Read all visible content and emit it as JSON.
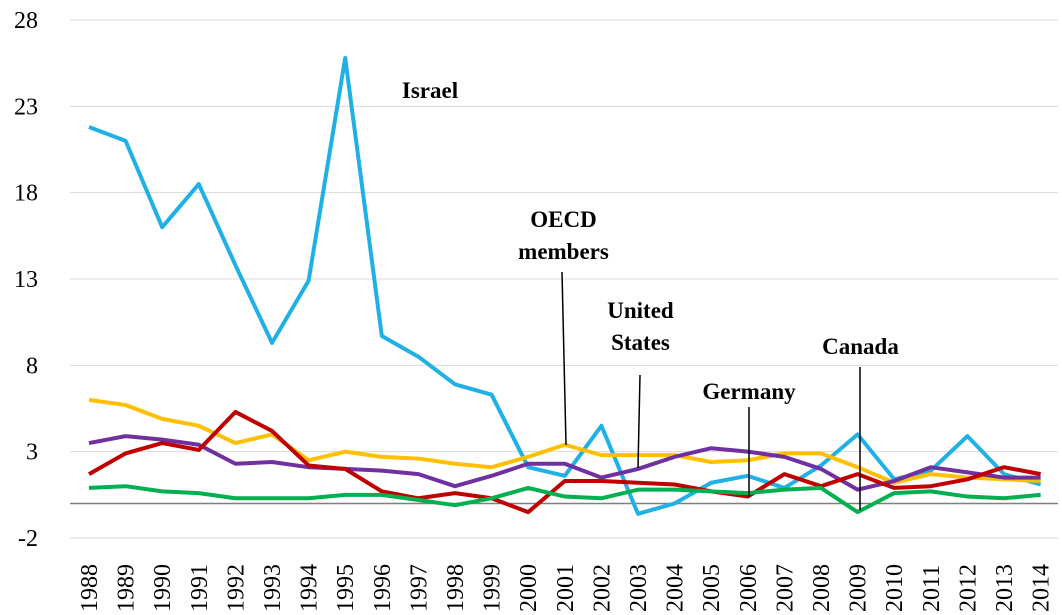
{
  "chart_data": {
    "type": "line",
    "categories": [
      "1988",
      "1989",
      "1990",
      "1991",
      "1992",
      "1993",
      "1994",
      "1995",
      "1996",
      "1997",
      "1998",
      "1999",
      "2000",
      "2001",
      "2002",
      "2003",
      "2004",
      "2005",
      "2006",
      "2007",
      "2008",
      "2009",
      "2010",
      "2011",
      "2012",
      "2013",
      "2014"
    ],
    "series": [
      {
        "name": "Israel",
        "color": "#1fb1e6",
        "values": [
          21.8,
          21.0,
          16.0,
          18.5,
          13.8,
          9.3,
          12.9,
          25.8,
          9.7,
          8.5,
          6.9,
          6.3,
          2.1,
          1.6,
          4.5,
          -0.6,
          0,
          1.2,
          1.6,
          0.9,
          2.2,
          4.0,
          1.4,
          1.9,
          3.9,
          1.7,
          1.1
        ]
      },
      {
        "name": "OECD members",
        "color": "#ffc000",
        "values": [
          6.0,
          5.7,
          4.9,
          4.5,
          3.5,
          4.0,
          2.5,
          3.0,
          2.7,
          2.6,
          2.3,
          2.1,
          2.7,
          3.4,
          2.8,
          2.8,
          2.8,
          2.4,
          2.5,
          2.9,
          2.9,
          2.1,
          1.2,
          1.7,
          1.5,
          1.4,
          1.3
        ]
      },
      {
        "name": "United States",
        "color": "#7030a0",
        "values": [
          3.5,
          3.9,
          3.7,
          3.4,
          2.3,
          2.4,
          2.1,
          2.0,
          1.9,
          1.7,
          1.0,
          1.6,
          2.3,
          2.3,
          1.5,
          2.0,
          2.7,
          3.2,
          3.0,
          2.7,
          2.0,
          0.8,
          1.3,
          2.1,
          1.8,
          1.5,
          1.5
        ]
      },
      {
        "name": "Germany",
        "color": "#c00000",
        "values": [
          1.7,
          2.9,
          3.5,
          3.1,
          5.3,
          4.2,
          2.2,
          2.0,
          0.7,
          0.3,
          0.6,
          0.3,
          -0.5,
          1.3,
          1.3,
          1.2,
          1.1,
          0.7,
          0.4,
          1.7,
          1.0,
          1.7,
          0.9,
          1.0,
          1.4,
          2.1,
          1.7
        ]
      },
      {
        "name": "Canada",
        "color": "#00b050",
        "values": [
          0.9,
          1.0,
          0.7,
          0.6,
          0.3,
          0.3,
          0.3,
          0.5,
          0.5,
          0.2,
          -0.1,
          0.3,
          0.9,
          0.4,
          0.3,
          0.8,
          0.8,
          0.7,
          0.6,
          0.8,
          0.9,
          -0.5,
          0.6,
          0.7,
          0.4,
          0.3,
          0.5
        ]
      }
    ],
    "ylim": [
      -2,
      28
    ],
    "yticks": [
      -2,
      3,
      8,
      13,
      18,
      23,
      28
    ],
    "grid": true
  }
}
